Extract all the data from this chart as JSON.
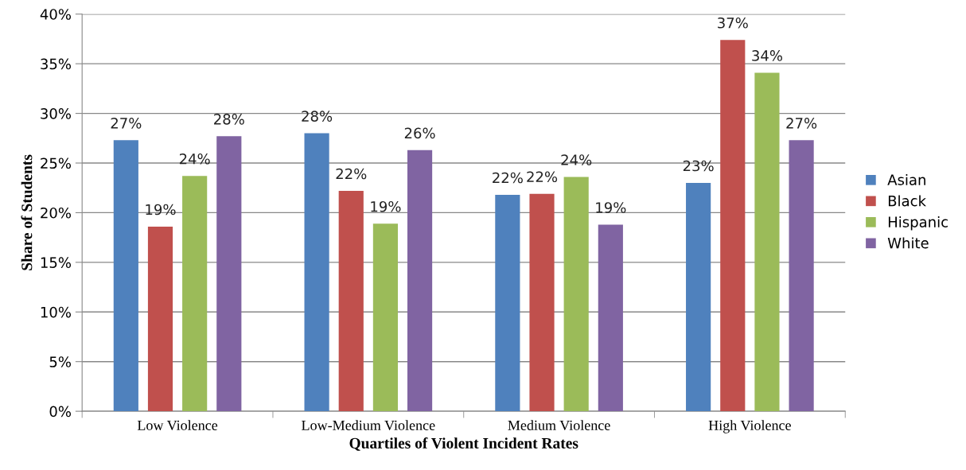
{
  "chart_data": {
    "type": "bar",
    "xlabel": "Quartiles of Violent Incident Rates",
    "ylabel": "Share of Students",
    "categories": [
      "Low Violence",
      "Low-Medium Violence",
      "Medium Violence",
      "High Violence"
    ],
    "series": [
      {
        "name": "Asian",
        "color": "#4f81bd",
        "values": [
          27.3,
          28.0,
          21.8,
          23.0
        ],
        "value_labels": [
          "27%",
          "28%",
          "22%",
          "23%"
        ]
      },
      {
        "name": "Black",
        "color": "#c0504d",
        "values": [
          18.6,
          22.2,
          21.9,
          37.4
        ],
        "value_labels": [
          "19%",
          "22%",
          "22%",
          "37%"
        ]
      },
      {
        "name": "Hispanic",
        "color": "#9bbb59",
        "values": [
          23.7,
          18.9,
          23.6,
          34.1
        ],
        "value_labels": [
          "24%",
          "19%",
          "24%",
          "34%"
        ]
      },
      {
        "name": "White",
        "color": "#8064a2",
        "values": [
          27.7,
          26.3,
          18.8,
          27.3
        ],
        "value_labels": [
          "28%",
          "26%",
          "19%",
          "27%"
        ]
      }
    ],
    "ylim": [
      0,
      40
    ],
    "yticks": [
      {
        "value": 0,
        "label": "0%"
      },
      {
        "value": 5,
        "label": "5%"
      },
      {
        "value": 10,
        "label": "10%"
      },
      {
        "value": 15,
        "label": "15%"
      },
      {
        "value": 20,
        "label": "20%"
      },
      {
        "value": 25,
        "label": "25%"
      },
      {
        "value": 30,
        "label": "30%"
      },
      {
        "value": 35,
        "label": "35%"
      },
      {
        "value": 40,
        "label": "40%"
      }
    ],
    "grid": "y",
    "legend": "right"
  }
}
